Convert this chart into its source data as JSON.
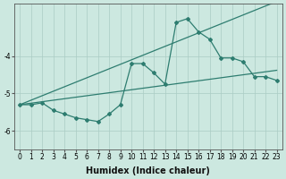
{
  "xlabel": "Humidex (Indice chaleur)",
  "ylabel": "",
  "background_color": "#cce8e0",
  "grid_color": "#aaccC4",
  "line_color": "#2e7d70",
  "x_values": [
    0,
    1,
    2,
    3,
    4,
    5,
    6,
    7,
    8,
    9,
    10,
    11,
    12,
    13,
    14,
    15,
    16,
    17,
    18,
    19,
    20,
    21,
    22,
    23
  ],
  "y_main": [
    -5.3,
    -5.3,
    -5.25,
    -5.45,
    -5.55,
    -5.65,
    -5.7,
    -5.75,
    -5.55,
    -5.3,
    -4.2,
    -4.2,
    -4.45,
    -4.75,
    -3.1,
    -3.0,
    -3.35,
    -3.55,
    -4.05,
    -4.05,
    -4.15,
    -4.55,
    -4.55,
    -4.65
  ],
  "y_trend_upper": [
    -5.3,
    -5.18,
    -5.06,
    -4.94,
    -4.82,
    -4.7,
    -4.58,
    -4.46,
    -4.34,
    -4.22,
    -4.1,
    -3.98,
    -3.86,
    -3.74,
    -3.62,
    -3.5,
    -3.38,
    -3.26,
    -3.14,
    -3.02,
    -2.9,
    -2.78,
    -2.66,
    -2.54
  ],
  "y_trend_lower": [
    -5.3,
    -5.26,
    -5.22,
    -5.18,
    -5.14,
    -5.1,
    -5.06,
    -5.02,
    -4.98,
    -4.94,
    -4.9,
    -4.86,
    -4.82,
    -4.78,
    -4.74,
    -4.7,
    -4.66,
    -4.62,
    -4.58,
    -4.54,
    -4.5,
    -4.46,
    -4.42,
    -4.38
  ],
  "xlim": [
    -0.5,
    23.5
  ],
  "ylim": [
    -6.5,
    -2.6
  ],
  "yticks": [
    -6,
    -5,
    -4
  ],
  "xticks": [
    0,
    1,
    2,
    3,
    4,
    5,
    6,
    7,
    8,
    9,
    10,
    11,
    12,
    13,
    14,
    15,
    16,
    17,
    18,
    19,
    20,
    21,
    22,
    23
  ],
  "tick_fontsize": 5.5,
  "xlabel_fontsize": 7
}
